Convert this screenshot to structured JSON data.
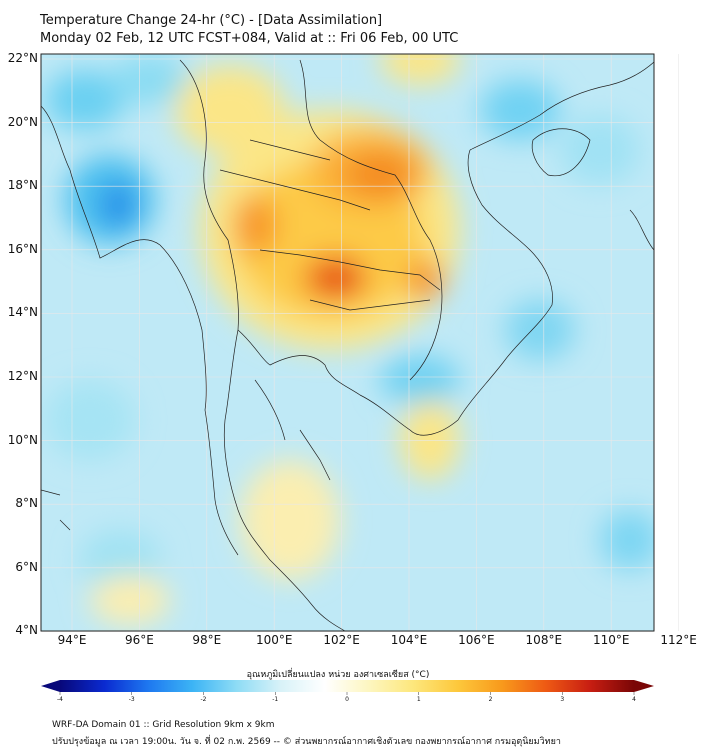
{
  "title": {
    "line1": "Temperature Change 24-hr (°C) - [Data Assimilation]",
    "line2": "Monday 02 Feb, 12 UTC FCST+084, Valid at :: Fri 06 Feb, 00 UTC"
  },
  "axes": {
    "lat_labels": [
      "22°N",
      "20°N",
      "18°N",
      "16°N",
      "14°N",
      "12°N",
      "10°N",
      "8°N",
      "6°N",
      "4°N"
    ],
    "lon_labels": [
      "94°E",
      "96°E",
      "98°E",
      "100°E",
      "102°E",
      "104°E",
      "106°E",
      "108°E",
      "110°E",
      "112°E"
    ]
  },
  "colorbar": {
    "label": "อุณหภูมิเปลี่ยนแปลง หน่วย องศาเซลเซียส (°C)",
    "ticks": [
      "-4",
      "-3",
      "-2",
      "-1",
      "0",
      "1",
      "2",
      "3",
      "4"
    ],
    "min": -4,
    "max": 4,
    "colors": [
      "#08087a",
      "#0a2ad0",
      "#1e78f0",
      "#3cb4f5",
      "#8edcf5",
      "#d8f2f8",
      "#ffffff",
      "#fdf6c0",
      "#fde77c",
      "#fdc83c",
      "#f89a1c",
      "#ee5a14",
      "#c81e12",
      "#7a0606"
    ]
  },
  "footer": {
    "line1": "WRF-DA Domain 01 :: Grid Resolution 9km x 9km",
    "line2": "ปรับปรุงข้อมูล ณ เวลา 19:00น. วัน จ. ที่ 02 ก.พ. 2569 -- © ส่วนพยากรณ์อากาศเชิงตัวเลข กองพยากรณ์อากาศ กรมอุตุนิยมวิทยา"
  }
}
